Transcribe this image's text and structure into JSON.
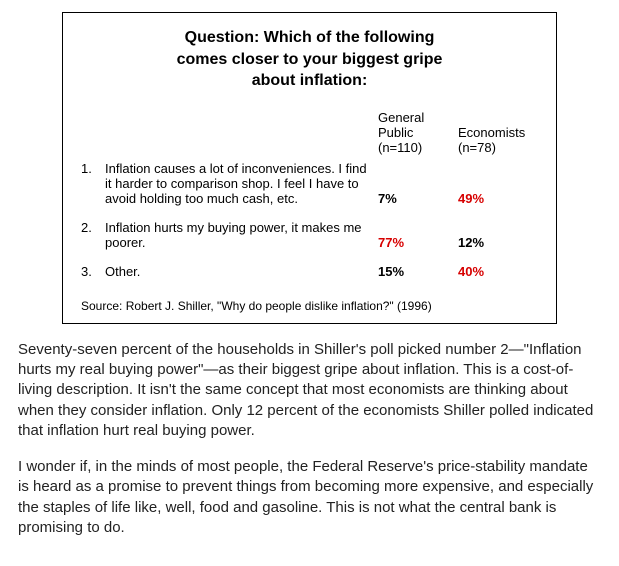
{
  "box": {
    "title_line1": "Question: Which of the following",
    "title_line2": "comes closer to your biggest gripe",
    "title_line3": "about inflation:",
    "col1_header_l1": "General",
    "col1_header_l2": "Public",
    "col1_header_l3": "(n=110)",
    "col2_header_l1": "Economists",
    "col2_header_l2": "(n=78)",
    "rows": [
      {
        "num": "1.",
        "text": "Inflation causes a lot of inconveniences. I find it harder to comparison shop. I feel I have to avoid holding too much cash, etc.",
        "v1": "7%",
        "v1_red": false,
        "v2": "49%",
        "v2_red": true
      },
      {
        "num": "2.",
        "text": "Inflation hurts my buying power, it makes me poorer.",
        "v1": "77%",
        "v1_red": true,
        "v2": "12%",
        "v2_red": false
      },
      {
        "num": "3.",
        "text": "Other.",
        "v1": "15%",
        "v1_red": false,
        "v2": "40%",
        "v2_red": true
      }
    ],
    "source": "Source: Robert J. Shiller, \"Why do people dislike inflation?\" (1996)"
  },
  "paragraphs": [
    "Seventy-seven percent of the households in Shiller's poll picked number 2—\"Inflation hurts my real buying power\"—as their biggest gripe about inflation. This is a cost-of-living description. It isn't the same concept that most economists are thinking about when they consider inflation. Only 12 percent of the economists Shiller polled indicated that inflation hurt real buying power.",
    "I wonder if, in the minds of most people, the Federal Reserve's price-stability mandate is heard as a promise to prevent things from becoming more expensive, and especially the staples of life like, well, food and gasoline. This is not what the central bank is promising to do."
  ],
  "colors": {
    "highlight": "#d70000",
    "text": "#000000",
    "border": "#000000",
    "background": "#ffffff"
  }
}
